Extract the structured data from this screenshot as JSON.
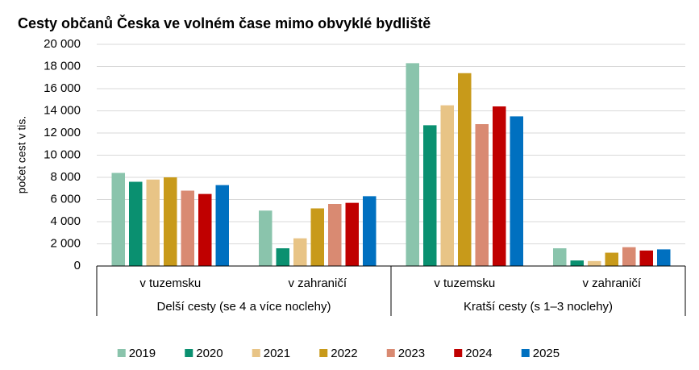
{
  "chart_data": {
    "type": "bar",
    "title": "Cesty občanů Česka ve volném čase mimo obvyklé bydliště",
    "y_label": "počet cest v tis.",
    "categories": [
      "v tuzemsku",
      "v zahraničí",
      "v tuzemsku",
      "v zahraničí"
    ],
    "groups": [
      "Delší cesty (se 4 a více noclehy)",
      "Kratší cesty (s 1–3 noclehy)"
    ],
    "series": [
      {
        "name": "2019",
        "color": "#8ac4ac",
        "values": [
          8400,
          5000,
          18300,
          1600
        ]
      },
      {
        "name": "2020",
        "color": "#0a9070",
        "values": [
          7600,
          1600,
          12700,
          500
        ]
      },
      {
        "name": "2021",
        "color": "#e8c486",
        "values": [
          7800,
          2500,
          14500,
          450
        ]
      },
      {
        "name": "2022",
        "color": "#c89a1a",
        "values": [
          8000,
          5200,
          17400,
          1200
        ]
      },
      {
        "name": "2023",
        "color": "#d98a72",
        "values": [
          6800,
          5600,
          12800,
          1700
        ]
      },
      {
        "name": "2024",
        "color": "#c00000",
        "values": [
          6500,
          5700,
          14400,
          1400
        ]
      },
      {
        "name": "2025",
        "color": "#0070c0",
        "values": [
          7300,
          6300,
          13500,
          1500
        ]
      }
    ],
    "ylim": [
      0,
      20000
    ],
    "yticks": [
      0,
      {
        "value": 2000,
        "label": "2 000"
      },
      {
        "value": 4000,
        "label": "4 000"
      },
      {
        "value": 6000,
        "label": "6 000"
      },
      {
        "value": 8000,
        "label": "8 000"
      },
      {
        "value": 10000,
        "label": "10 000"
      },
      {
        "value": 12000,
        "label": "12 000"
      },
      {
        "value": 14000,
        "label": "14 000"
      },
      {
        "value": 16000,
        "label": "16 000"
      },
      {
        "value": 18000,
        "label": "18 000"
      },
      {
        "value": 20000,
        "label": "20 000"
      }
    ],
    "grid": true,
    "legend": "bottom"
  }
}
